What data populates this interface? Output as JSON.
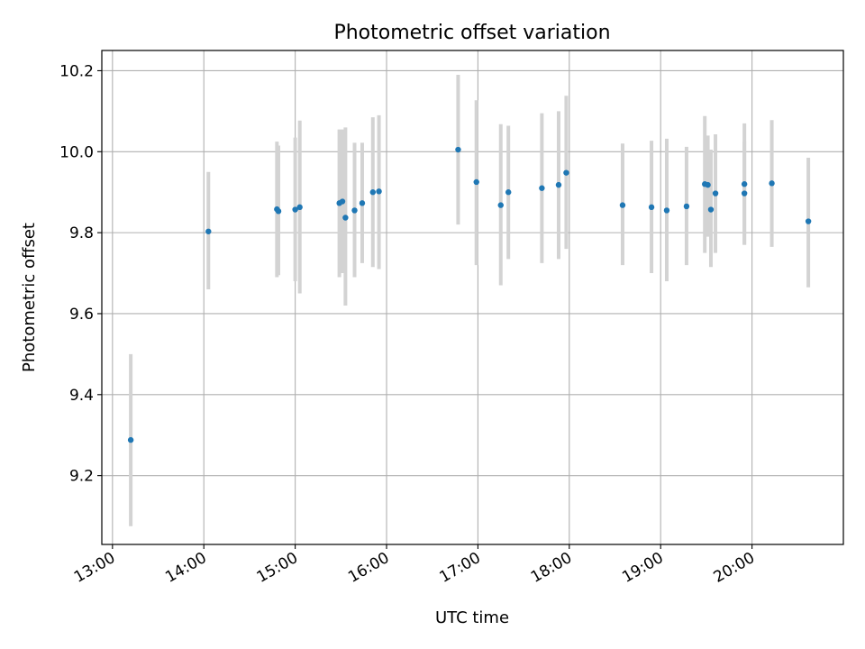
{
  "chart_data": {
    "type": "scatter",
    "title": "Photometric offset variation",
    "xlabel": "UTC time",
    "ylabel": "Photometric offset",
    "x_ticks": [
      "13:00",
      "14:00",
      "15:00",
      "16:00",
      "17:00",
      "18:00",
      "19:00",
      "20:00"
    ],
    "x_range": [
      "12:53",
      "21:00"
    ],
    "y_ticks": [
      9.2,
      9.4,
      9.6,
      9.8,
      10.0,
      10.2
    ],
    "y_tick_labels": [
      "9.2",
      "9.4",
      "9.6",
      "9.8",
      "10.0",
      "10.2"
    ],
    "ylim": [
      9.03,
      10.25
    ],
    "grid": true,
    "colors": {
      "point": "#1f77b4",
      "error_bar": "#d3d3d3",
      "grid": "#b0b0b0"
    },
    "points": [
      {
        "x": "13:12",
        "y": 9.288,
        "ylow": 9.075,
        "yhigh": 9.5
      },
      {
        "x": "14:03",
        "y": 9.803,
        "ylow": 9.66,
        "yhigh": 9.95
      },
      {
        "x": "14:48",
        "y": 9.858,
        "ylow": 9.69,
        "yhigh": 10.025
      },
      {
        "x": "14:49",
        "y": 9.853,
        "ylow": 9.695,
        "yhigh": 10.015
      },
      {
        "x": "15:00",
        "y": 9.857,
        "ylow": 9.68,
        "yhigh": 10.035
      },
      {
        "x": "15:03",
        "y": 9.863,
        "ylow": 9.65,
        "yhigh": 10.077
      },
      {
        "x": "15:29",
        "y": 9.873,
        "ylow": 9.69,
        "yhigh": 10.055
      },
      {
        "x": "15:31",
        "y": 9.877,
        "ylow": 9.7,
        "yhigh": 10.055
      },
      {
        "x": "15:33",
        "y": 9.837,
        "ylow": 9.62,
        "yhigh": 10.06
      },
      {
        "x": "15:39",
        "y": 9.855,
        "ylow": 9.69,
        "yhigh": 10.022
      },
      {
        "x": "15:44",
        "y": 9.873,
        "ylow": 9.725,
        "yhigh": 10.022
      },
      {
        "x": "15:51",
        "y": 9.9,
        "ylow": 9.715,
        "yhigh": 10.085
      },
      {
        "x": "15:55",
        "y": 9.902,
        "ylow": 9.71,
        "yhigh": 10.09
      },
      {
        "x": "16:47",
        "y": 10.005,
        "ylow": 9.82,
        "yhigh": 10.19
      },
      {
        "x": "16:59",
        "y": 9.925,
        "ylow": 9.72,
        "yhigh": 10.127
      },
      {
        "x": "17:15",
        "y": 9.868,
        "ylow": 9.67,
        "yhigh": 10.068
      },
      {
        "x": "17:20",
        "y": 9.9,
        "ylow": 9.735,
        "yhigh": 10.064
      },
      {
        "x": "17:42",
        "y": 9.91,
        "ylow": 9.725,
        "yhigh": 10.095
      },
      {
        "x": "17:53",
        "y": 9.918,
        "ylow": 9.735,
        "yhigh": 10.1
      },
      {
        "x": "17:58",
        "y": 9.948,
        "ylow": 9.76,
        "yhigh": 10.138
      },
      {
        "x": "18:35",
        "y": 9.868,
        "ylow": 9.72,
        "yhigh": 10.02
      },
      {
        "x": "18:54",
        "y": 9.863,
        "ylow": 9.7,
        "yhigh": 10.027
      },
      {
        "x": "19:04",
        "y": 9.855,
        "ylow": 9.68,
        "yhigh": 10.032
      },
      {
        "x": "19:17",
        "y": 9.865,
        "ylow": 9.72,
        "yhigh": 10.012
      },
      {
        "x": "19:29",
        "y": 9.92,
        "ylow": 9.75,
        "yhigh": 10.088
      },
      {
        "x": "19:31",
        "y": 9.918,
        "ylow": 9.79,
        "yhigh": 10.04
      },
      {
        "x": "19:33",
        "y": 9.857,
        "ylow": 9.715,
        "yhigh": 10.005
      },
      {
        "x": "19:36",
        "y": 9.897,
        "ylow": 9.75,
        "yhigh": 10.043
      },
      {
        "x": "19:55",
        "y": 9.92,
        "ylow": 9.77,
        "yhigh": 10.07
      },
      {
        "x": "19:55",
        "y": 9.897,
        "ylow": 9.77,
        "yhigh": 10.025
      },
      {
        "x": "20:13",
        "y": 9.922,
        "ylow": 9.765,
        "yhigh": 10.078
      },
      {
        "x": "20:37",
        "y": 9.828,
        "ylow": 9.665,
        "yhigh": 9.985
      }
    ]
  }
}
